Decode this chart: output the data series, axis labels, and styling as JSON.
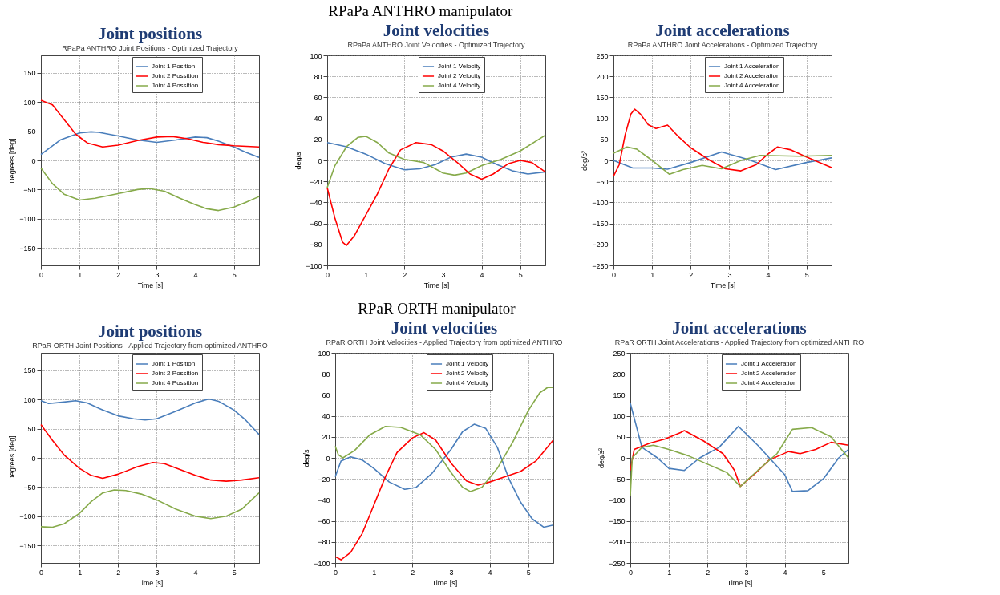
{
  "chart_data": [
    {
      "type": "line",
      "title": "Joint positions",
      "subtitle": "RPaPa ANTHRO Joint Positions - Optimized Trajectory",
      "annotations": [
        "RPaPa ANTHRO manipulator"
      ],
      "xlabel": "Time [s]",
      "ylabel": "Degrees [deg]",
      "xlim": [
        0,
        5.65
      ],
      "xticks": [
        0,
        1,
        2,
        3,
        4,
        5
      ],
      "ylim": [
        -180,
        180
      ],
      "yticks": [
        -150,
        -100,
        -50,
        0,
        50,
        100,
        150
      ],
      "grid": true,
      "legend": "top right",
      "series": [
        {
          "name": "Joint 1 Position",
          "color": "#4a7ebb",
          "x": [
            0,
            0.5,
            1,
            1.3,
            1.5,
            2,
            2.5,
            3,
            3.5,
            4,
            4.3,
            4.6,
            5,
            5.3,
            5.65
          ],
          "values": [
            10,
            35,
            47,
            49,
            48,
            42,
            35,
            31,
            35,
            40,
            39,
            33,
            23,
            14,
            5
          ]
        },
        {
          "name": "Joint 2 Possition",
          "color": "#ff0000",
          "x": [
            0,
            0.3,
            0.6,
            0.9,
            1.2,
            1.6,
            2,
            2.5,
            3,
            3.4,
            3.8,
            4.2,
            4.6,
            5,
            5.65
          ],
          "values": [
            103,
            95,
            70,
            45,
            30,
            23,
            26,
            34,
            40,
            41,
            37,
            31,
            27,
            25,
            23
          ]
        },
        {
          "name": "Joint 4 Possition",
          "color": "#86aa4a",
          "x": [
            0,
            0.3,
            0.6,
            1,
            1.4,
            2,
            2.5,
            2.8,
            3.2,
            3.6,
            4,
            4.3,
            4.6,
            5,
            5.3,
            5.65
          ],
          "values": [
            -13,
            -40,
            -58,
            -68,
            -65,
            -57,
            -50,
            -48,
            -53,
            -65,
            -76,
            -83,
            -86,
            -80,
            -72,
            -62
          ]
        }
      ]
    },
    {
      "type": "line",
      "title": "Joint velocities",
      "subtitle": "RPaPa ANTHRO Joint Velocities - Optimized Trajectory",
      "xlabel": "Time [s]",
      "ylabel": "deg/s",
      "xlim": [
        0,
        5.65
      ],
      "xticks": [
        0,
        1,
        2,
        3,
        4,
        5
      ],
      "ylim": [
        -100,
        100
      ],
      "yticks": [
        -100,
        -80,
        -60,
        -40,
        -20,
        0,
        20,
        40,
        60,
        80,
        100
      ],
      "grid": true,
      "legend": "top right",
      "series": [
        {
          "name": "Joint 1 Velocity",
          "color": "#4a7ebb",
          "x": [
            0,
            0.5,
            1,
            1.5,
            2,
            2.4,
            2.8,
            3.2,
            3.6,
            4,
            4.4,
            4.8,
            5.2,
            5.65
          ],
          "values": [
            17,
            13,
            6,
            -3,
            -9,
            -8,
            -4,
            3,
            6,
            3,
            -4,
            -10,
            -13,
            -11
          ]
        },
        {
          "name": "Joint 2 Velocity",
          "color": "#ff0000",
          "x": [
            0,
            0.2,
            0.4,
            0.5,
            0.7,
            1,
            1.3,
            1.6,
            1.9,
            2.3,
            2.7,
            3,
            3.4,
            3.7,
            4,
            4.3,
            4.7,
            5,
            5.3,
            5.65
          ],
          "values": [
            -26,
            -55,
            -78,
            -81,
            -72,
            -52,
            -32,
            -8,
            10,
            17,
            15,
            9,
            -3,
            -13,
            -18,
            -13,
            -3,
            0,
            -2,
            -11
          ]
        },
        {
          "name": "Joint 4 Velocity",
          "color": "#86aa4a",
          "x": [
            0,
            0.2,
            0.5,
            0.8,
            1,
            1.3,
            1.6,
            2,
            2.5,
            3,
            3.3,
            3.6,
            4,
            4.5,
            5,
            5.65
          ],
          "values": [
            -26,
            -5,
            13,
            22,
            23,
            17,
            7,
            1,
            -2,
            -12,
            -14,
            -12,
            -5,
            1,
            9,
            24
          ]
        }
      ]
    },
    {
      "type": "line",
      "title": "Joint accelerations",
      "subtitle": "RPaPa ANTHRO Joint Accelerations - Optimized Trajectory",
      "xlabel": "Time [s]",
      "ylabel": "deg/s²",
      "xlim": [
        0,
        5.65
      ],
      "xticks": [
        0,
        1,
        2,
        3,
        4,
        5
      ],
      "ylim": [
        -250,
        250
      ],
      "yticks": [
        -250,
        -200,
        -150,
        -100,
        -50,
        0,
        50,
        100,
        150,
        200,
        250
      ],
      "grid": true,
      "legend": "top right",
      "series": [
        {
          "name": "Joint 1 Acceleration",
          "color": "#4a7ebb",
          "x": [
            0,
            0.5,
            1,
            1.4,
            2,
            2.8,
            3.5,
            4.2,
            5,
            5.65
          ],
          "values": [
            0,
            -18,
            -18,
            -21,
            -5,
            20,
            2,
            -22,
            -5,
            6
          ]
        },
        {
          "name": "Joint 2 Acceleration",
          "color": "#ff0000",
          "x": [
            0,
            0.15,
            0.3,
            0.45,
            0.55,
            0.7,
            0.9,
            1.1,
            1.4,
            1.7,
            2,
            2.5,
            2.9,
            3.3,
            3.7,
            4,
            4.25,
            4.6,
            5,
            5.65
          ],
          "values": [
            -38,
            -10,
            60,
            110,
            122,
            110,
            85,
            76,
            84,
            55,
            30,
            0,
            -20,
            -25,
            -10,
            15,
            32,
            25,
            8,
            -17
          ]
        },
        {
          "name": "Joint 4 Acceleration",
          "color": "#86aa4a",
          "x": [
            0,
            0.35,
            0.6,
            1,
            1.45,
            1.8,
            2.3,
            2.8,
            3.3,
            3.8,
            4.3,
            4.8,
            5.65
          ],
          "values": [
            17,
            32,
            27,
            0,
            -33,
            -22,
            -12,
            -20,
            0,
            12,
            11,
            10,
            12
          ]
        }
      ]
    },
    {
      "type": "line",
      "title": "Joint positions",
      "subtitle": "RPaR ORTH Joint Positions - Applied Trajectory from optimized ANTHRO",
      "annotations": [
        "RPaR ORTH manipulator"
      ],
      "xlabel": "Time [s]",
      "ylabel": "Degrees [deg]",
      "xlim": [
        0,
        5.65
      ],
      "xticks": [
        0,
        1,
        2,
        3,
        4,
        5
      ],
      "ylim": [
        -180,
        180
      ],
      "yticks": [
        -150,
        -100,
        -50,
        0,
        50,
        100,
        150
      ],
      "grid": true,
      "legend": "top right",
      "series": [
        {
          "name": "Joint 1 Position",
          "color": "#4a7ebb",
          "x": [
            0,
            0.2,
            0.5,
            0.9,
            1.2,
            1.6,
            2,
            2.4,
            2.7,
            3,
            3.5,
            4,
            4.35,
            4.6,
            5,
            5.3,
            5.65
          ],
          "values": [
            98,
            93,
            95,
            98,
            94,
            82,
            72,
            67,
            65,
            67,
            80,
            94,
            101,
            97,
            82,
            65,
            40
          ]
        },
        {
          "name": "Joint 2 Possition",
          "color": "#ff0000",
          "x": [
            0,
            0.3,
            0.6,
            1,
            1.3,
            1.6,
            2,
            2.5,
            2.9,
            3.2,
            3.6,
            4,
            4.4,
            4.8,
            5.2,
            5.65
          ],
          "values": [
            57,
            30,
            5,
            -18,
            -30,
            -35,
            -28,
            -15,
            -8,
            -10,
            -20,
            -30,
            -38,
            -40,
            -38,
            -34
          ]
        },
        {
          "name": "Joint 4 Possition",
          "color": "#86aa4a",
          "x": [
            0,
            0.3,
            0.6,
            1,
            1.3,
            1.6,
            1.9,
            2.2,
            2.6,
            3,
            3.5,
            4,
            4.4,
            4.8,
            5.2,
            5.65
          ],
          "values": [
            -118,
            -119,
            -113,
            -95,
            -75,
            -60,
            -55,
            -56,
            -62,
            -72,
            -88,
            -100,
            -104,
            -100,
            -88,
            -60
          ]
        }
      ]
    },
    {
      "type": "line",
      "title": "Joint velocities",
      "subtitle": "RPaR ORTH Joint Velocities - Applied Trajectory from optimized ANTHRO",
      "xlabel": "Time [s]",
      "ylabel": "deg/s",
      "xlim": [
        0,
        5.65
      ],
      "xticks": [
        0,
        1,
        2,
        3,
        4,
        5
      ],
      "ylim": [
        -100,
        100
      ],
      "yticks": [
        -100,
        -80,
        -60,
        -40,
        -20,
        0,
        20,
        40,
        60,
        80,
        100
      ],
      "grid": true,
      "legend": "top right",
      "series": [
        {
          "name": "Joint 1 Velocity",
          "color": "#4a7ebb",
          "x": [
            0,
            0.15,
            0.4,
            0.7,
            1,
            1.4,
            1.8,
            2.1,
            2.5,
            3,
            3.3,
            3.6,
            3.9,
            4.2,
            4.5,
            4.8,
            5.1,
            5.4,
            5.65
          ],
          "values": [
            -18,
            -3,
            1,
            -2,
            -10,
            -23,
            -30,
            -28,
            -15,
            8,
            25,
            32,
            28,
            10,
            -20,
            -42,
            -58,
            -66,
            -64
          ]
        },
        {
          "name": "Joint 2 Velocity",
          "color": "#ff0000",
          "x": [
            0,
            0.15,
            0.4,
            0.7,
            1,
            1.3,
            1.6,
            2,
            2.3,
            2.6,
            3,
            3.4,
            3.7,
            4,
            4.4,
            4.8,
            5.2,
            5.65
          ],
          "values": [
            -94,
            -97,
            -90,
            -72,
            -45,
            -18,
            5,
            19,
            24,
            17,
            -5,
            -22,
            -26,
            -23,
            -18,
            -13,
            -3,
            17
          ]
        },
        {
          "name": "Joint 4 Velocity",
          "color": "#86aa4a",
          "x": [
            0,
            0.08,
            0.2,
            0.5,
            0.9,
            1.3,
            1.7,
            2.2,
            2.6,
            3,
            3.3,
            3.5,
            3.8,
            4.2,
            4.6,
            5,
            5.3,
            5.5,
            5.65
          ],
          "values": [
            11,
            3,
            0,
            7,
            22,
            30,
            29,
            22,
            8,
            -14,
            -28,
            -32,
            -28,
            -10,
            15,
            45,
            62,
            67,
            67
          ]
        }
      ]
    },
    {
      "type": "line",
      "title": "Joint accelerations",
      "subtitle": "RPaR ORTH Joint Accelerations - Applied Trajectory from optimized ANTHRO",
      "xlabel": "Time [s]",
      "ylabel": "deg/s²",
      "xlim": [
        0,
        5.65
      ],
      "xticks": [
        0,
        1,
        2,
        3,
        4,
        5
      ],
      "ylim": [
        -250,
        250
      ],
      "yticks": [
        -250,
        -200,
        -150,
        -100,
        -50,
        0,
        50,
        100,
        150,
        200,
        250
      ],
      "grid": true,
      "legend": "top right",
      "series": [
        {
          "name": "Joint 1 Acceleration",
          "color": "#4a7ebb",
          "x": [
            0,
            0.3,
            0.7,
            1,
            1.4,
            1.8,
            2.3,
            2.8,
            3.3,
            3.6,
            4,
            4.2,
            4.6,
            5,
            5.4,
            5.65
          ],
          "values": [
            130,
            25,
            0,
            -25,
            -30,
            0,
            25,
            75,
            30,
            0,
            -40,
            -80,
            -78,
            -50,
            0,
            20
          ]
        },
        {
          "name": "Joint 2 Acceleration",
          "color": "#ff0000",
          "x": [
            0,
            0.1,
            0.5,
            0.9,
            1.3,
            1.4,
            1.9,
            2.4,
            2.7,
            2.85,
            3.2,
            3.6,
            4.1,
            4.4,
            4.8,
            5.2,
            5.65
          ],
          "values": [
            -30,
            20,
            35,
            45,
            60,
            65,
            40,
            10,
            -30,
            -68,
            -40,
            -5,
            15,
            10,
            20,
            37,
            30
          ]
        },
        {
          "name": "Joint 4 Acceleration",
          "color": "#86aa4a",
          "x": [
            0,
            0.05,
            0.3,
            0.6,
            1,
            1.5,
            2,
            2.5,
            2.85,
            3.3,
            3.8,
            4.2,
            4.7,
            5.2,
            5.65
          ],
          "values": [
            -90,
            0,
            25,
            30,
            20,
            5,
            -15,
            -35,
            -68,
            -30,
            10,
            68,
            72,
            50,
            0
          ]
        }
      ]
    }
  ]
}
